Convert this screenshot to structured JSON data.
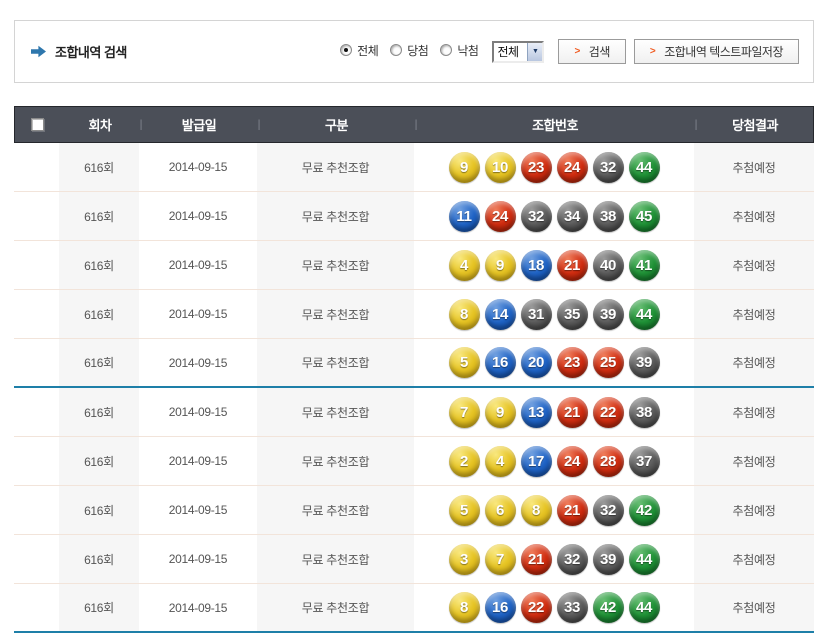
{
  "search": {
    "title": "조합내역 검색",
    "radios": [
      {
        "label": "전체",
        "checked": true
      },
      {
        "label": "당첨",
        "checked": false
      },
      {
        "label": "낙첨",
        "checked": false
      }
    ],
    "select_value": "전체",
    "search_button": "검색",
    "save_button": "조합내역 텍스트파일저장"
  },
  "table": {
    "headers": [
      "회차",
      "발급일",
      "구분",
      "조합번호",
      "당첨결과"
    ],
    "rows": [
      {
        "round": "616회",
        "date": "2014-09-15",
        "type": "무료 추천조합",
        "numbers": [
          9,
          10,
          23,
          24,
          32,
          44
        ],
        "result": "추첨예정"
      },
      {
        "round": "616회",
        "date": "2014-09-15",
        "type": "무료 추천조합",
        "numbers": [
          11,
          24,
          32,
          34,
          38,
          45
        ],
        "result": "추첨예정"
      },
      {
        "round": "616회",
        "date": "2014-09-15",
        "type": "무료 추천조합",
        "numbers": [
          4,
          9,
          18,
          21,
          40,
          41
        ],
        "result": "추첨예정"
      },
      {
        "round": "616회",
        "date": "2014-09-15",
        "type": "무료 추천조합",
        "numbers": [
          8,
          14,
          31,
          35,
          39,
          44
        ],
        "result": "추첨예정"
      },
      {
        "round": "616회",
        "date": "2014-09-15",
        "type": "무료 추천조합",
        "numbers": [
          5,
          16,
          20,
          23,
          25,
          39
        ],
        "result": "추첨예정"
      },
      {
        "round": "616회",
        "date": "2014-09-15",
        "type": "무료 추천조합",
        "numbers": [
          7,
          9,
          13,
          21,
          22,
          38
        ],
        "result": "추첨예정"
      },
      {
        "round": "616회",
        "date": "2014-09-15",
        "type": "무료 추천조합",
        "numbers": [
          2,
          4,
          17,
          24,
          28,
          37
        ],
        "result": "추첨예정"
      },
      {
        "round": "616회",
        "date": "2014-09-15",
        "type": "무료 추천조합",
        "numbers": [
          5,
          6,
          8,
          21,
          32,
          42
        ],
        "result": "추첨예정"
      },
      {
        "round": "616회",
        "date": "2014-09-15",
        "type": "무료 추천조합",
        "numbers": [
          3,
          7,
          21,
          32,
          39,
          44
        ],
        "result": "추첨예정"
      },
      {
        "round": "616회",
        "date": "2014-09-15",
        "type": "무료 추천조합",
        "numbers": [
          8,
          16,
          22,
          33,
          42,
          44
        ],
        "result": "추첨예정"
      }
    ]
  },
  "colors": {
    "header_bg": "#4b4f58",
    "divider_teal": "#1e7fa8",
    "accent_orange": "#f0591e",
    "row_separator": "#f2e4da",
    "shaded_column": "#f6f6f6",
    "ball_yellow": "#e6c424",
    "ball_blue": "#1f63c5",
    "ball_red": "#d02c10",
    "ball_gray": "#5b5b5b",
    "ball_green": "#1f9136"
  },
  "ball_ranges": {
    "yellow": "1-10",
    "blue": "11-20",
    "red": "21-30",
    "gray": "31-40",
    "green": "41-45"
  }
}
